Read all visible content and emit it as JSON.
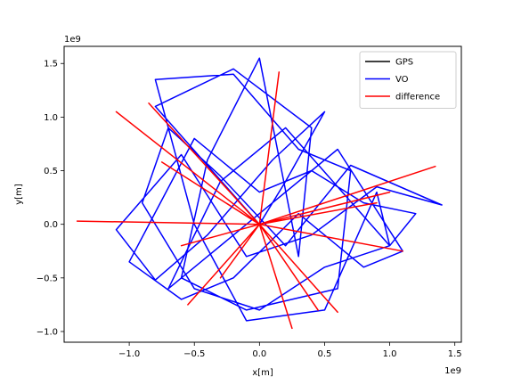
{
  "chart_data": {
    "type": "line",
    "title": "",
    "xlabel": "x[m]",
    "ylabel": "y[m]",
    "x_offset_text": "1e9",
    "y_offset_text": "1e9",
    "xlim": [
      -1.5,
      1.55
    ],
    "ylim": [
      -1.1,
      1.66
    ],
    "units_scale": "1e9",
    "xticks": [
      -1.0,
      -0.5,
      0.0,
      0.5,
      1.0,
      1.5
    ],
    "xtick_labels": [
      "−1.0",
      "−0.5",
      "0.0",
      "0.5",
      "1.0",
      "1.5"
    ],
    "yticks": [
      -1.0,
      -0.5,
      0.0,
      0.5,
      1.0,
      1.5
    ],
    "ytick_labels": [
      "−1.0",
      "−0.5",
      "0.0",
      "0.5",
      "1.0",
      "1.5"
    ],
    "grid": false,
    "legend_position": "upper right",
    "legend": [
      "GPS",
      "VO",
      "difference"
    ],
    "series": [
      {
        "name": "GPS",
        "color": "#000000",
        "x": [
          0.0,
          0.0
        ],
        "y": [
          0.0,
          0.0
        ]
      },
      {
        "name": "VO",
        "color": "#0000ff",
        "x": [
          0.0,
          -0.8,
          -0.2,
          0.4,
          0.3,
          0.0,
          -0.4,
          -0.6,
          -0.1,
          0.6,
          0.7,
          0.3,
          -0.2,
          -0.8,
          -0.5,
          -0.1,
          0.5,
          0.9,
          1.0,
          0.2,
          -0.3,
          -0.7,
          -0.4,
          0.1,
          0.6,
          1.1,
          0.8,
          0.3,
          -0.2,
          -0.6,
          -1.0,
          -0.5,
          0.0,
          0.4,
          0.8,
          1.2,
          1.0,
          0.5,
          0.0,
          -0.5,
          -0.9,
          -0.7,
          -0.3,
          0.2,
          0.7,
          1.4,
          0.9,
          0.4,
          -0.1,
          -0.6,
          -1.1,
          -0.8,
          -0.4,
          0.1,
          0.5,
          0.2,
          0.0
        ],
        "y": [
          0.0,
          1.1,
          1.45,
          0.9,
          -0.3,
          1.55,
          0.6,
          -0.5,
          -0.8,
          -0.6,
          0.5,
          0.7,
          1.4,
          1.35,
          0.0,
          -0.9,
          -0.8,
          0.3,
          -0.2,
          0.9,
          0.4,
          -0.6,
          -0.3,
          0.2,
          0.7,
          -0.25,
          -0.4,
          0.1,
          -0.5,
          -0.7,
          -0.35,
          0.8,
          0.3,
          0.5,
          0.2,
          0.1,
          -0.2,
          -0.4,
          -0.8,
          -0.6,
          0.2,
          0.9,
          0.45,
          -0.2,
          0.55,
          0.18,
          0.35,
          -0.1,
          -0.3,
          0.65,
          -0.05,
          -0.52,
          -0.1,
          0.6,
          1.05,
          0.4,
          0.0
        ]
      },
      {
        "name": "difference",
        "color": "#ff0000",
        "x": [
          0.0,
          -1.4,
          0.0,
          -0.85,
          0.0,
          -0.55,
          0.0,
          1.35,
          0.0,
          1.1,
          0.0,
          0.25,
          0.0,
          -1.1,
          0.0,
          0.6,
          0.0,
          0.9,
          0.0,
          -0.75,
          0.0,
          0.15,
          0.0,
          -0.3,
          0.0,
          1.0,
          0.0,
          0.45,
          0.0,
          -0.6,
          0.0
        ],
        "y": [
          0.0,
          0.03,
          0.0,
          1.13,
          0.0,
          -0.75,
          0.0,
          0.54,
          0.0,
          -0.25,
          0.0,
          -0.97,
          0.0,
          1.05,
          0.0,
          -0.82,
          0.0,
          0.2,
          0.0,
          0.58,
          0.0,
          1.42,
          0.0,
          -0.5,
          0.0,
          0.3,
          0.0,
          -0.8,
          0.0,
          -0.2,
          0.0
        ]
      }
    ]
  }
}
